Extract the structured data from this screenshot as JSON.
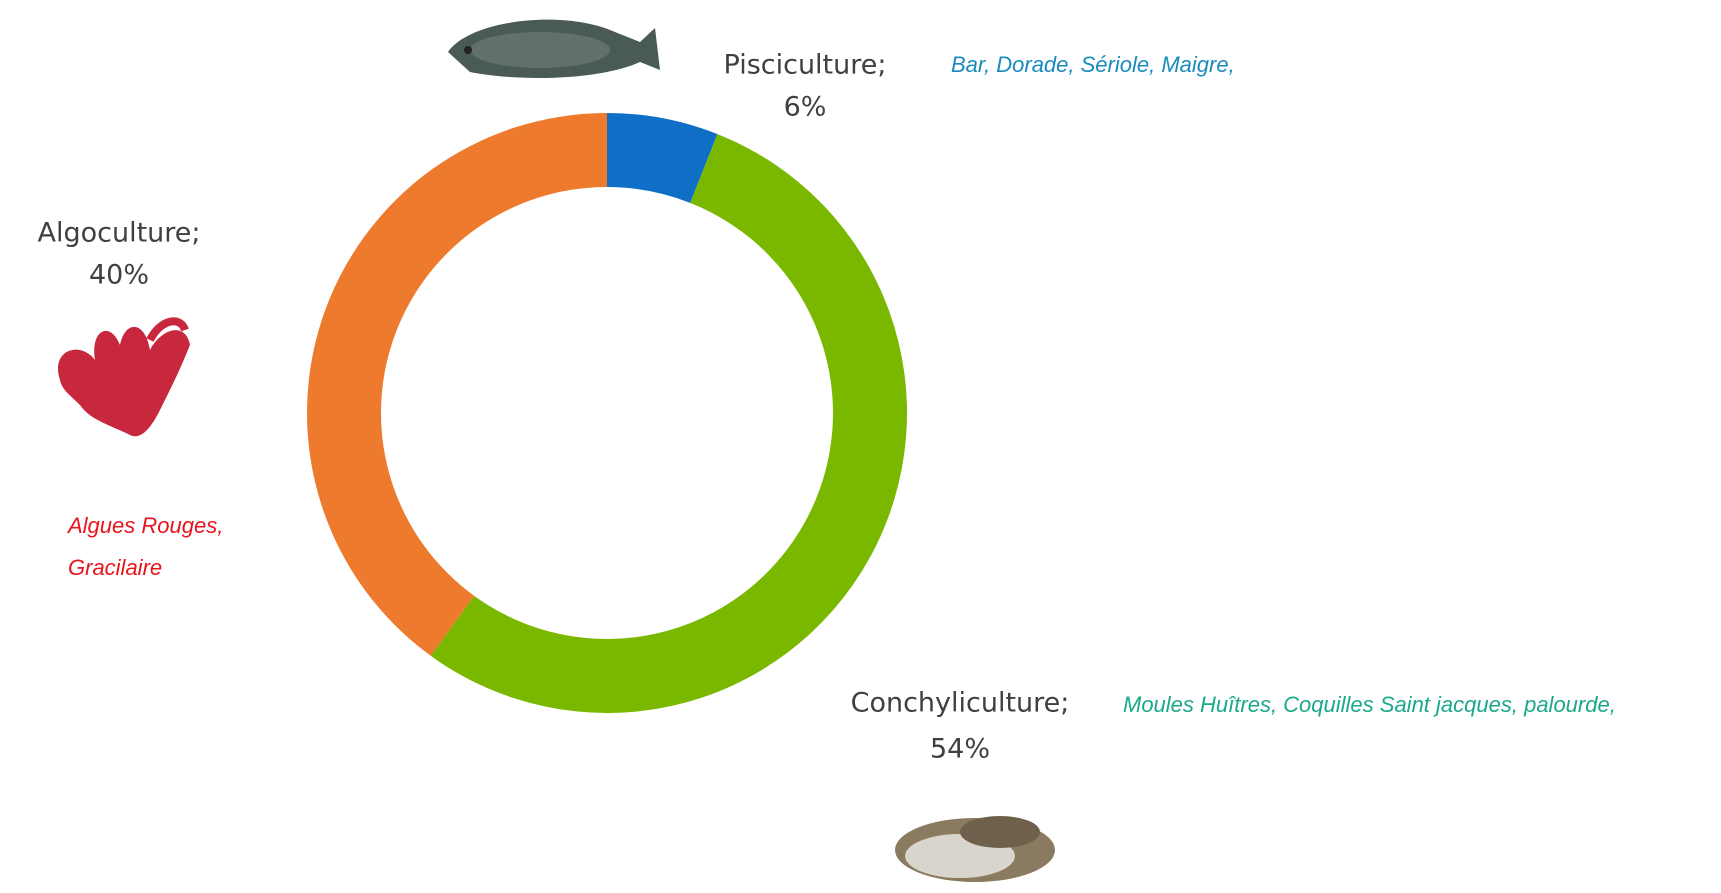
{
  "chart_data": {
    "type": "donut",
    "categories": [
      "Pisciculture;",
      "Conchyliculture;",
      "Algoculture;"
    ],
    "values": [
      6,
      54,
      40
    ],
    "value_labels": [
      "6%",
      "54%",
      "40%"
    ],
    "colors": [
      "#0f6fc6",
      "#7ab800",
      "#ee7a2e"
    ],
    "annotations": [
      {
        "lines": [
          "Bar, Dorade, Sériole, Maigre,"
        ],
        "color": "#1a8bbd"
      },
      {
        "lines": [
          "Moules Huîtres, Coquilles Saint jacques, palourde,"
        ],
        "color": "#1aa98a"
      },
      {
        "lines": [
          "Algues Rouges,",
          "Gracilaire"
        ],
        "color": "#e8141c"
      }
    ]
  }
}
